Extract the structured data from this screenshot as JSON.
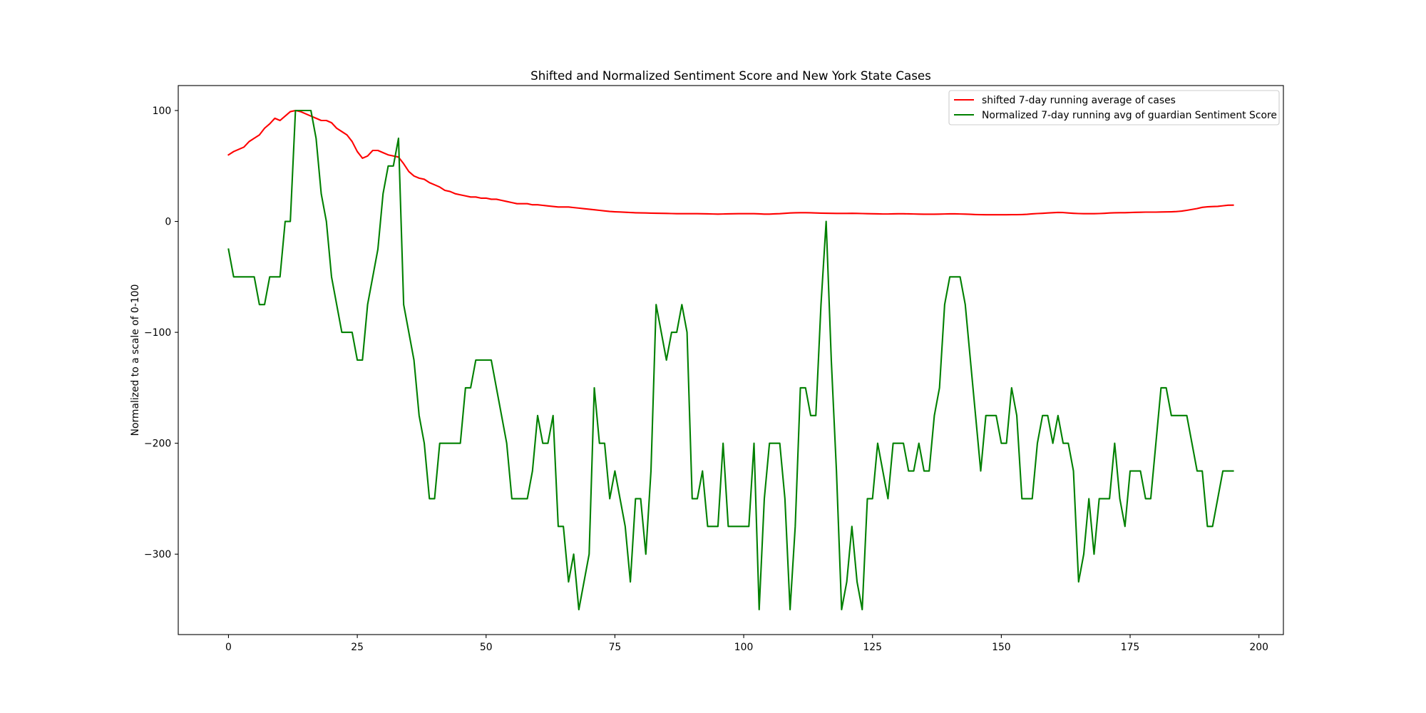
{
  "chart_data": {
    "type": "line",
    "title": "Shifted and Normalized Sentiment Score and New York State Cases",
    "ylabel": "Normalized to a scale of 0-100",
    "xlim": [
      -9.75,
      204.75
    ],
    "ylim": [
      -372.5,
      122.5
    ],
    "xticks": [
      0,
      25,
      50,
      75,
      100,
      125,
      150,
      175,
      200
    ],
    "xtick_labels": [
      "0",
      "25",
      "50",
      "75",
      "100",
      "125",
      "150",
      "175",
      "200"
    ],
    "yticks": [
      100,
      0,
      -100,
      -200,
      -300
    ],
    "ytick_labels": [
      "100",
      "0",
      "−100",
      "−200",
      "−300"
    ],
    "grid": false,
    "legend": "upper right",
    "x": [
      0,
      1,
      2,
      3,
      4,
      5,
      6,
      7,
      8,
      9,
      10,
      11,
      12,
      13,
      14,
      15,
      16,
      17,
      18,
      19,
      20,
      21,
      22,
      23,
      24,
      25,
      26,
      27,
      28,
      29,
      30,
      31,
      32,
      33,
      34,
      35,
      36,
      37,
      38,
      39,
      40,
      41,
      42,
      43,
      44,
      45,
      46,
      47,
      48,
      49,
      50,
      51,
      52,
      53,
      54,
      55,
      56,
      57,
      58,
      59,
      60,
      61,
      62,
      63,
      64,
      65,
      66,
      67,
      68,
      69,
      70,
      71,
      72,
      73,
      74,
      75,
      76,
      77,
      78,
      79,
      80,
      81,
      82,
      83,
      84,
      85,
      86,
      87,
      88,
      89,
      90,
      91,
      92,
      93,
      94,
      95,
      96,
      97,
      98,
      99,
      100,
      101,
      102,
      103,
      104,
      105,
      106,
      107,
      108,
      109,
      110,
      111,
      112,
      113,
      114,
      115,
      116,
      117,
      118,
      119,
      120,
      121,
      122,
      123,
      124,
      125,
      126,
      127,
      128,
      129,
      130,
      131,
      132,
      133,
      134,
      135,
      136,
      137,
      138,
      139,
      140,
      141,
      142,
      143,
      144,
      145,
      146,
      147,
      148,
      149,
      150,
      151,
      152,
      153,
      154,
      155,
      156,
      157,
      158,
      159,
      160,
      161,
      162,
      163,
      164,
      165,
      166,
      167,
      168,
      169,
      170,
      171,
      172,
      173,
      174,
      175,
      176,
      177,
      178,
      179,
      180,
      181,
      182,
      183,
      184,
      185,
      186,
      187,
      188,
      189,
      190,
      191,
      192,
      193,
      194,
      195
    ],
    "series": [
      {
        "name": "shifted 7-day running average of cases",
        "color": "#ff0000",
        "values": [
          60,
          63,
          65,
          67,
          72,
          75,
          78,
          84,
          88,
          93,
          91,
          95,
          99,
          100,
          99,
          97,
          95,
          93,
          91,
          91,
          89,
          84,
          81,
          78,
          72,
          63,
          57,
          59,
          64,
          64,
          62,
          60,
          59,
          58,
          52,
          45,
          41,
          39,
          38,
          35,
          33,
          31,
          28,
          27,
          25,
          24,
          23,
          22,
          22,
          21,
          21,
          20,
          20,
          19,
          18,
          17,
          16,
          16,
          16,
          15,
          15,
          14.5,
          14,
          13.5,
          13,
          13,
          13,
          12.5,
          12,
          11.5,
          11,
          10.5,
          10,
          9.5,
          9,
          8.7,
          8.5,
          8.3,
          8,
          7.8,
          7.7,
          7.6,
          7.5,
          7.4,
          7.3,
          7.2,
          7.1,
          7,
          7,
          7,
          7,
          7,
          6.9,
          6.8,
          6.7,
          6.6,
          6.7,
          6.8,
          6.9,
          7,
          7,
          7,
          7,
          6.8,
          6.6,
          6.6,
          6.8,
          7,
          7.3,
          7.6,
          7.8,
          7.9,
          7.9,
          7.8,
          7.6,
          7.5,
          7.4,
          7.3,
          7.2,
          7.2,
          7.2,
          7.3,
          7.2,
          7.1,
          7,
          6.9,
          6.8,
          6.7,
          6.7,
          6.8,
          6.9,
          6.9,
          6.8,
          6.7,
          6.6,
          6.5,
          6.5,
          6.5,
          6.6,
          6.7,
          6.8,
          6.8,
          6.7,
          6.6,
          6.4,
          6.2,
          6.1,
          6,
          6,
          6,
          6,
          6,
          6.1,
          6.1,
          6.2,
          6.4,
          6.8,
          7.1,
          7.3,
          7.6,
          7.9,
          8.1,
          8,
          7.6,
          7.3,
          7.1,
          7,
          7,
          7,
          7.1,
          7.3,
          7.6,
          7.8,
          7.9,
          7.9,
          8,
          8.2,
          8.3,
          8.4,
          8.4,
          8.4,
          8.5,
          8.6,
          8.7,
          8.9,
          9.3,
          10,
          10.8,
          11.6,
          12.7,
          13.2,
          13.4,
          13.6,
          14.1,
          14.6,
          14.7
        ]
      },
      {
        "name": "Normalized 7-day running avg of guardian Sentiment Score",
        "color": "#008000",
        "values": [
          -25,
          -50,
          -50,
          -50,
          -50,
          -50,
          -75,
          -75,
          -50,
          -50,
          -50,
          0,
          0,
          100,
          100,
          100,
          100,
          75,
          25,
          0,
          -50,
          -75,
          -100,
          -100,
          -100,
          -125,
          -125,
          -75,
          -50,
          -25,
          25,
          50,
          50,
          75,
          -75,
          -100,
          -125,
          -175,
          -200,
          -250,
          -250,
          -200,
          -200,
          -200,
          -200,
          -200,
          -150,
          -150,
          -125,
          -125,
          -125,
          -125,
          -150,
          -175,
          -200,
          -250,
          -250,
          -250,
          -250,
          -225,
          -175,
          -200,
          -200,
          -175,
          -275,
          -275,
          -325,
          -300,
          -350,
          -325,
          -300,
          -150,
          -200,
          -200,
          -250,
          -225,
          -250,
          -275,
          -325,
          -250,
          -250,
          -300,
          -225,
          -75,
          -100,
          -125,
          -100,
          -100,
          -75,
          -100,
          -250,
          -250,
          -225,
          -275,
          -275,
          -275,
          -200,
          -275,
          -275,
          -275,
          -275,
          -275,
          -200,
          -350,
          -250,
          -200,
          -200,
          -200,
          -250,
          -350,
          -275,
          -150,
          -150,
          -175,
          -175,
          -75,
          0,
          -125,
          -225,
          -350,
          -325,
          -275,
          -325,
          -350,
          -250,
          -250,
          -200,
          -225,
          -250,
          -200,
          -200,
          -200,
          -225,
          -225,
          -200,
          -225,
          -225,
          -175,
          -150,
          -75,
          -50,
          -50,
          -50,
          -75,
          -125,
          -175,
          -225,
          -175,
          -175,
          -175,
          -200,
          -200,
          -150,
          -175,
          -250,
          -250,
          -250,
          -200,
          -175,
          -175,
          -200,
          -175,
          -200,
          -200,
          -225,
          -325,
          -300,
          -250,
          -300,
          -250,
          -250,
          -250,
          -200,
          -250,
          -275,
          -225,
          -225,
          -225,
          -250,
          -250,
          -200,
          -150,
          -150,
          -175,
          -175,
          -175,
          -175,
          -200,
          -225,
          -225,
          -275,
          -275,
          -250,
          -225,
          -225,
          -225
        ]
      }
    ]
  }
}
